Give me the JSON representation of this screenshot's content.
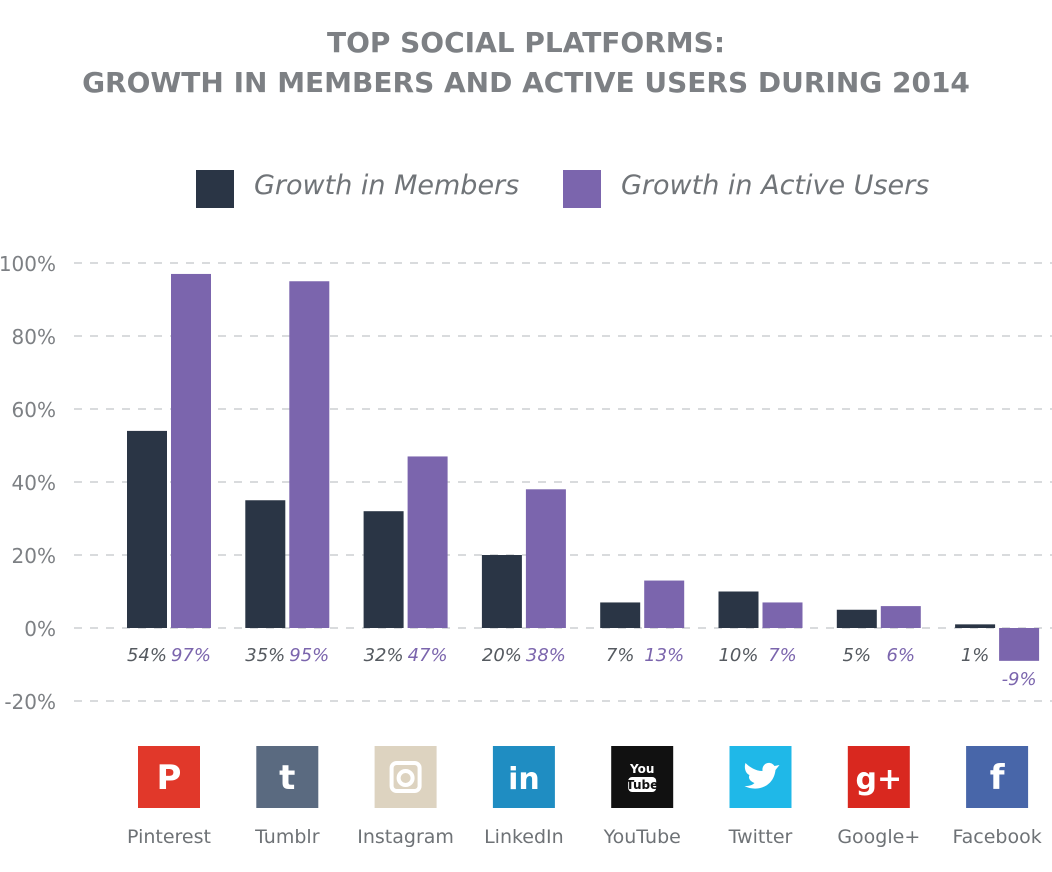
{
  "title_line1": "TOP SOCIAL PLATFORMS:",
  "title_line2": "GROWTH IN MEMBERS AND ACTIVE USERS DURING 2014",
  "colors": {
    "members": "#2a3545",
    "active": "#7b65ad",
    "grid": "#d9dbdd",
    "axis_text": "#7d8084",
    "value_text_members": "#555a60",
    "value_text_active": "#7b65ad"
  },
  "icons": [
    {
      "name": "pinterest-icon",
      "glyph": "P",
      "bg": "#e1382a"
    },
    {
      "name": "tumblr-icon",
      "glyph": "t",
      "bg": "#5a6a80"
    },
    {
      "name": "instagram-icon",
      "glyph": "",
      "bg": "#ddd3c0"
    },
    {
      "name": "linkedin-icon",
      "glyph": "in",
      "bg": "#1f8dc2"
    },
    {
      "name": "youtube-icon",
      "glyph": "You Tube",
      "bg": "#111111"
    },
    {
      "name": "twitter-icon",
      "glyph": "",
      "bg": "#1fb8e8"
    },
    {
      "name": "googleplus-icon",
      "glyph": "g+",
      "bg": "#d9281f"
    },
    {
      "name": "facebook-icon",
      "glyph": "f",
      "bg": "#4866a9"
    }
  ],
  "chart_data": {
    "type": "bar",
    "categories": [
      "Pinterest",
      "Tumblr",
      "Instagram",
      "LinkedIn",
      "YouTube",
      "Twitter",
      "Google+",
      "Facebook"
    ],
    "series": [
      {
        "name": "Growth in Members",
        "values": [
          54,
          35,
          32,
          20,
          7,
          10,
          5,
          1
        ],
        "labels": [
          "54%",
          "35%",
          "32%",
          "20%",
          "7%",
          "10%",
          "5%",
          "1%"
        ]
      },
      {
        "name": "Growth in Active Users",
        "values": [
          97,
          95,
          47,
          38,
          13,
          7,
          6,
          -9
        ],
        "labels": [
          "97%",
          "95%",
          "47%",
          "38%",
          "13%",
          "7%",
          "6%",
          "-9%"
        ]
      }
    ],
    "yticks": [
      "100%",
      "80%",
      "60%",
      "40%",
      "20%",
      "0%",
      "-20%"
    ],
    "ytick_values": [
      100,
      80,
      60,
      40,
      20,
      0,
      -20
    ],
    "ylim": [
      -20,
      100
    ],
    "grid": true,
    "legend_position": "top"
  }
}
